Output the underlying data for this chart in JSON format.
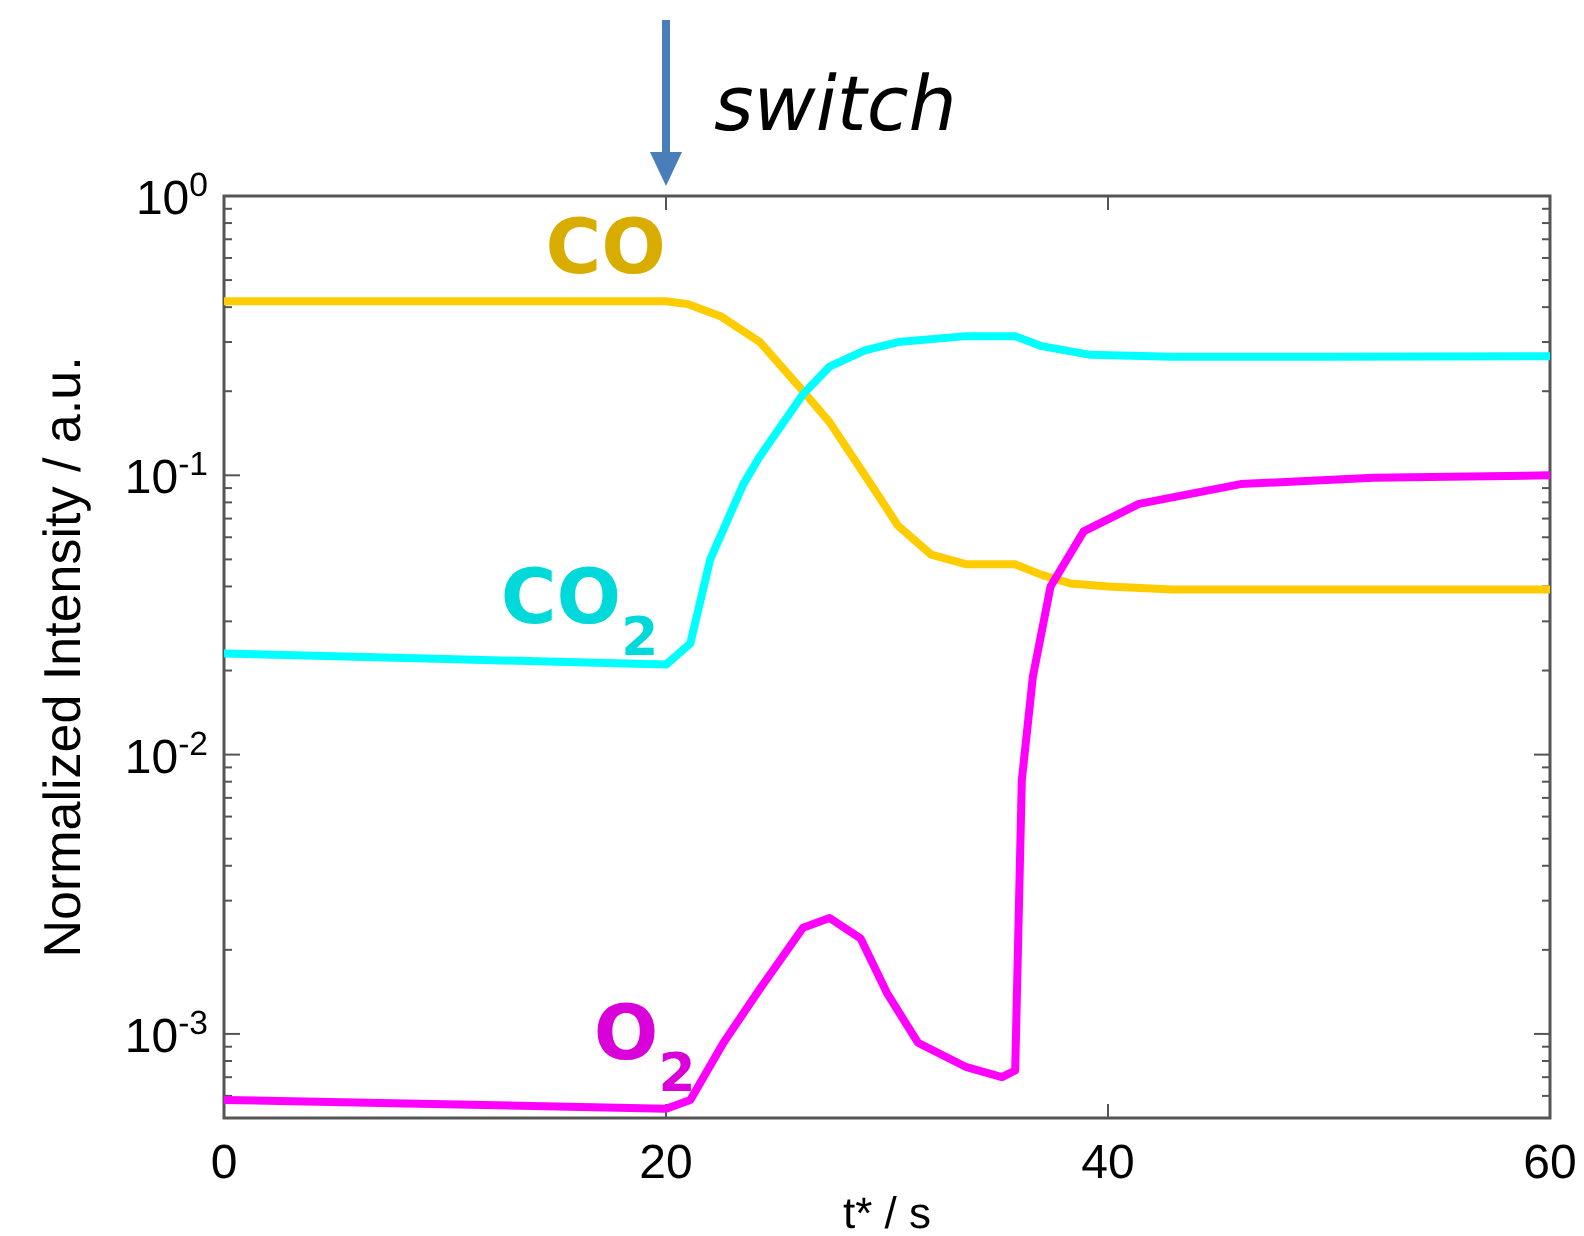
{
  "chart_data": {
    "type": "line",
    "xlabel": "t* / s",
    "ylabel": "Normalized Intensity / a.u.",
    "log": "y",
    "grid": false,
    "line_style": "solid",
    "xlim": [
      0,
      60
    ],
    "xticks": [
      0,
      20,
      40,
      60
    ],
    "ylim": [
      0.0005,
      1
    ],
    "yticks": [
      {
        "value": 0.001,
        "label": "10$^{-3}$"
      },
      {
        "value": 0.01,
        "label": "10$^{-2}$"
      },
      {
        "value": 0.1,
        "label": "10$^{-1}$"
      },
      {
        "value": 1,
        "label": "10$^{0}$"
      },
      {
        "value": 0.0006,
        "label": null
      },
      {
        "value": 0.0007,
        "label": null
      },
      {
        "value": 0.0008,
        "label": null
      },
      {
        "value": 0.0009,
        "label": null
      },
      {
        "value": 0.002,
        "label": null
      },
      {
        "value": 0.003,
        "label": null
      },
      {
        "value": 0.004,
        "label": null
      },
      {
        "value": 0.005,
        "label": null
      },
      {
        "value": 0.006,
        "label": null
      },
      {
        "value": 0.007,
        "label": null
      },
      {
        "value": 0.008,
        "label": null
      },
      {
        "value": 0.009,
        "label": null
      },
      {
        "value": 0.02,
        "label": null
      },
      {
        "value": 0.03,
        "label": null
      },
      {
        "value": 0.04,
        "label": null
      },
      {
        "value": 0.05,
        "label": null
      },
      {
        "value": 0.06,
        "label": null
      },
      {
        "value": 0.07,
        "label": null
      },
      {
        "value": 0.08,
        "label": null
      },
      {
        "value": 0.09,
        "label": null
      },
      {
        "value": 0.2,
        "label": null
      },
      {
        "value": 0.3,
        "label": null
      },
      {
        "value": 0.4,
        "label": null
      },
      {
        "value": 0.5,
        "label": null
      },
      {
        "value": 0.6,
        "label": null
      },
      {
        "value": 0.7,
        "label": null
      },
      {
        "value": 0.8,
        "label": null
      },
      {
        "value": 0.9,
        "label": null
      }
    ],
    "ref_lines": [
      {
        "axis": "x",
        "value": 20,
        "label": "switch"
      }
    ],
    "series": [
      {
        "name": "CO",
        "color": "#ffcc00",
        "x": [
          0,
          10,
          20,
          21,
          22.5,
          24.25,
          26.2,
          27.4,
          29,
          30.5,
          32,
          33.6,
          35.8,
          37,
          38.3,
          40,
          42.9,
          50,
          60
        ],
        "values": [
          0.42,
          0.42,
          0.42,
          0.41,
          0.37,
          0.3,
          0.2,
          0.155,
          0.1,
          0.066,
          0.052,
          0.048,
          0.048,
          0.044,
          0.041,
          0.04,
          0.039,
          0.039,
          0.039
        ]
      },
      {
        "name": "CO$_{2}$",
        "color": "#00ffff",
        "x": [
          0,
          10,
          20,
          21.1,
          22,
          23.5,
          24.25,
          26.2,
          27.4,
          29,
          30.5,
          33.6,
          35.8,
          37,
          39.2,
          42.9,
          50,
          60
        ],
        "values": [
          0.023,
          0.022,
          0.021,
          0.025,
          0.05,
          0.093,
          0.117,
          0.195,
          0.245,
          0.28,
          0.3,
          0.315,
          0.315,
          0.29,
          0.27,
          0.266,
          0.266,
          0.267
        ]
      },
      {
        "name": "O$_{2}$",
        "color": "#ff00ff",
        "x": [
          0,
          10,
          20,
          21.1,
          22.6,
          24.25,
          26.2,
          27.4,
          28.8,
          30,
          31.4,
          33.6,
          35.2,
          35.8,
          36.1,
          36.6,
          37.4,
          38.9,
          41.4,
          46,
          52,
          60
        ],
        "values": [
          0.00058,
          0.00056,
          0.00054,
          0.00058,
          0.00093,
          0.00145,
          0.0024,
          0.0026,
          0.0022,
          0.0014,
          0.00093,
          0.00076,
          0.0007,
          0.00074,
          0.0081,
          0.019,
          0.04,
          0.063,
          0.079,
          0.093,
          0.098,
          0.1
        ]
      }
    ]
  }
}
